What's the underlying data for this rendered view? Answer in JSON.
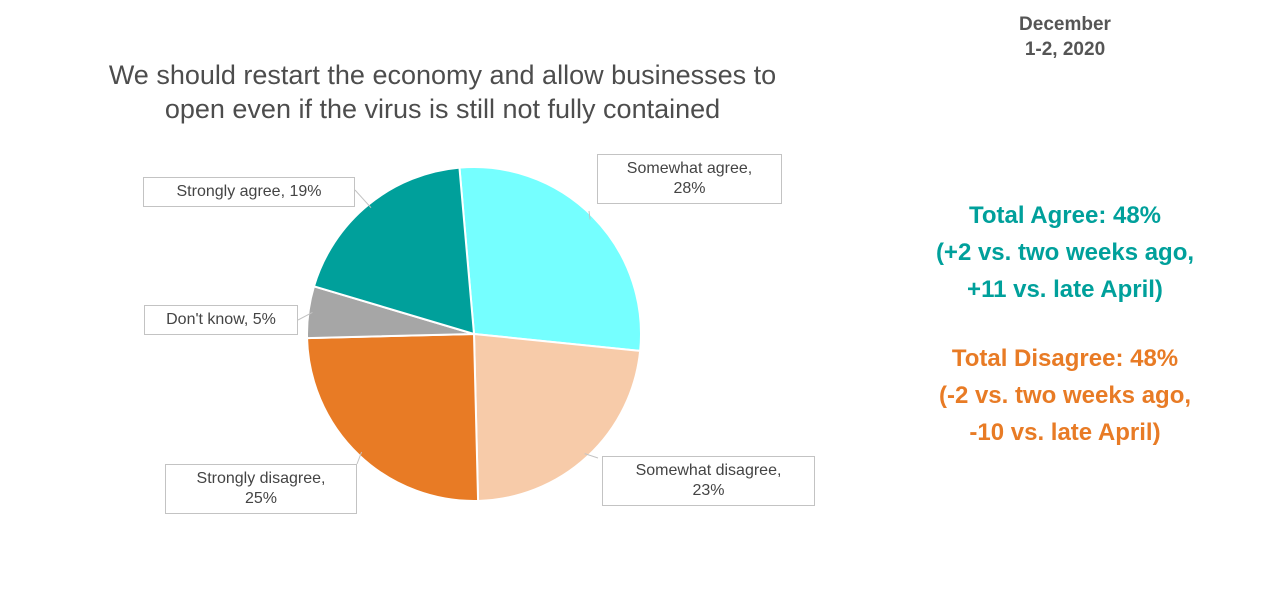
{
  "date": {
    "line1": "December",
    "line2": "1-2, 2020"
  },
  "chart_data": {
    "type": "pie",
    "title_lines": [
      "We should restart the economy and allow businesses to",
      "open even if the virus is still not fully contained"
    ],
    "slices": [
      {
        "label": "Somewhat agree",
        "value": 28,
        "color": "#75ffff",
        "label_lines": [
          "Somewhat agree,",
          "28%"
        ]
      },
      {
        "label": "Somewhat disagree",
        "value": 23,
        "color": "#f7cba9",
        "label_lines": [
          "Somewhat disagree,",
          "23%"
        ]
      },
      {
        "label": "Strongly disagree",
        "value": 25,
        "color": "#e87b25",
        "label_lines": [
          "Strongly disagree,",
          "25%"
        ]
      },
      {
        "label": "Don't know",
        "value": 5,
        "color": "#a6a6a6",
        "label_lines": [
          "Don't know, 5%"
        ]
      },
      {
        "label": "Strongly agree",
        "value": 19,
        "color": "#00a09b",
        "label_lines": [
          "Strongly agree, 19%"
        ]
      }
    ]
  },
  "summary": {
    "agree": {
      "line1": "Total Agree: 48%",
      "line2": "(+2 vs. two weeks ago,",
      "line3": "+11 vs. late April)",
      "color": "#00a09b"
    },
    "disagree": {
      "line1": "Total Disagree: 48%",
      "line2": "(-2 vs. two weeks ago,",
      "line3": "-10 vs. late April)",
      "color": "#e87b25"
    }
  }
}
